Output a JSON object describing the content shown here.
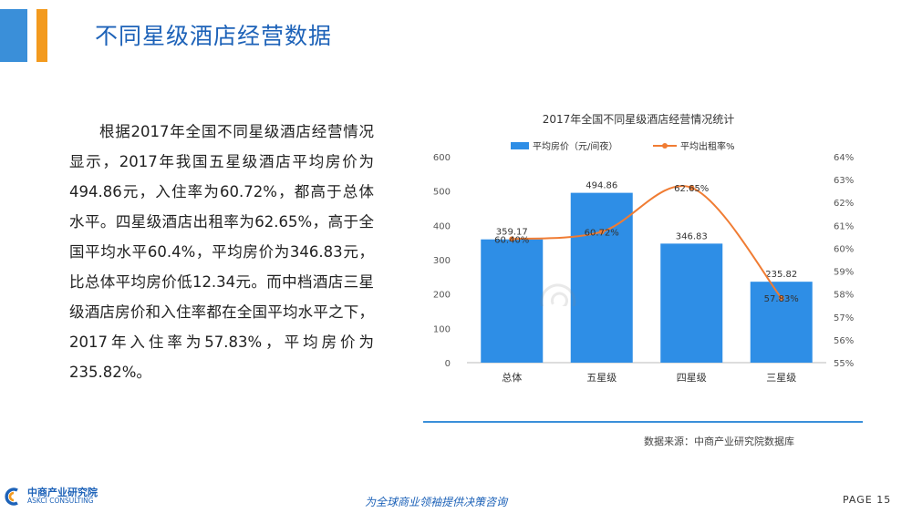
{
  "page": {
    "title": "不同星级酒店经营数据",
    "body": "根据2017年全国不同星级酒店经营情况显示，2017年我国五星级酒店平均房价为494.86元，入住率为60.72%，都高于总体水平。四星级酒店出租率为62.65%，高于全国平均水平60.4%，平均房价为346.83元，比总体平均房价低12.34元。而中档酒店三星级酒店房价和入住率都在全国平均水平之下，2017年入住率为57.83%，平均房价为235.82%。",
    "source": "数据来源：中商产业研究院数据库",
    "slogan": "为全球商业领袖提供决策咨询",
    "page_number": "PAGE 15",
    "logo_cn": "中商产业研究院",
    "logo_en": "ASKCI CONSULTING",
    "accent_blue": "#3a8fd9",
    "accent_orange": "#f39a1e"
  },
  "chart_data": {
    "type": "bar",
    "title": "2017年全国不同星级酒店经营情况统计",
    "categories": [
      "总体",
      "五星级",
      "四星级",
      "三星级"
    ],
    "series": [
      {
        "name": "平均房价（元/间夜）",
        "kind": "bar",
        "axis": "left",
        "color": "#2e8ee6",
        "values": [
          359.17,
          494.86,
          346.83,
          235.82
        ],
        "labels": [
          "359.17",
          "494.86",
          "346.83",
          "235.82"
        ]
      },
      {
        "name": "平均出租率%",
        "kind": "line",
        "axis": "right",
        "color": "#f07c33",
        "values": [
          60.4,
          60.72,
          62.65,
          57.83
        ],
        "labels": [
          "60.40%",
          "60.72%",
          "62.65%",
          "57.83%"
        ]
      }
    ],
    "y_left": {
      "min": 0,
      "max": 600,
      "ticks": [
        "0",
        "100",
        "200",
        "300",
        "400",
        "500",
        "600"
      ]
    },
    "y_right": {
      "min": 55,
      "max": 64,
      "ticks": [
        "55%",
        "56%",
        "57%",
        "58%",
        "59%",
        "60%",
        "61%",
        "62%",
        "63%",
        "64%"
      ]
    },
    "legend": "top",
    "grid": false
  }
}
